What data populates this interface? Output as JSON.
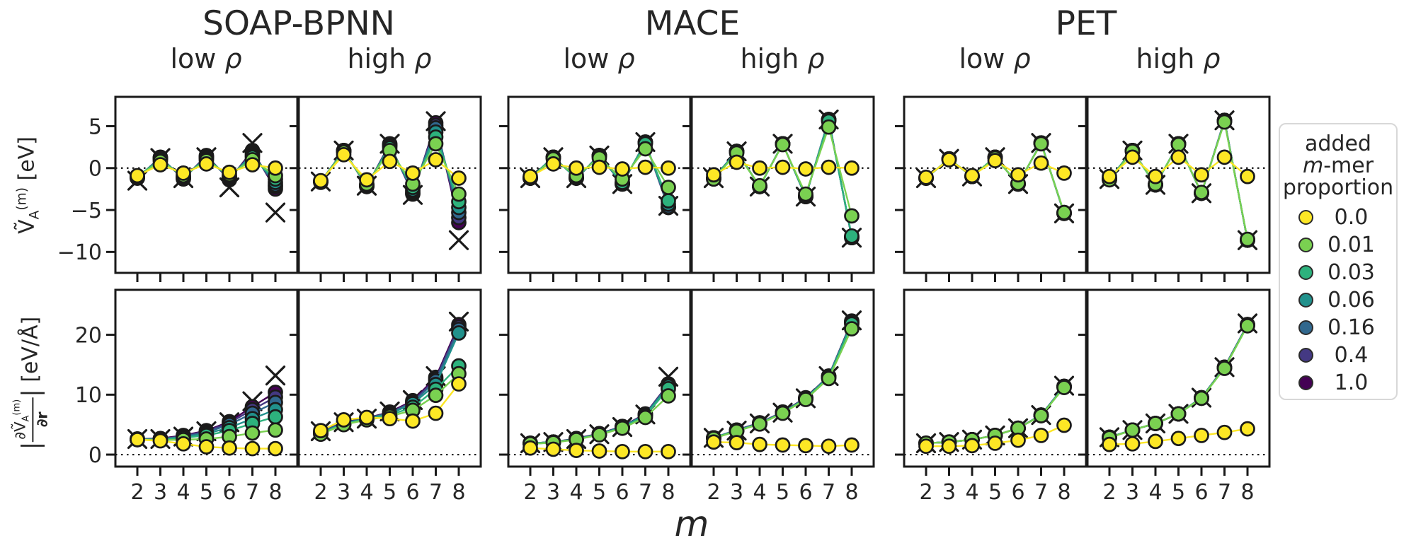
{
  "figure": {
    "groups": [
      {
        "title": "SOAP-BPNN"
      },
      {
        "title": "MACE"
      },
      {
        "title": "PET"
      }
    ],
    "subtitles": [
      "low ρ",
      "high ρ",
      "low ρ",
      "high ρ",
      "low ρ",
      "high ρ"
    ],
    "xlabel": "m"
  },
  "axes": {
    "top": {
      "label": {
        "sym": "Ṽ",
        "sub": "A",
        "sup": "(m)",
        "unit": " [eV]"
      }
    },
    "bottom": {
      "label": {
        "bar": "|",
        "num": "∂Ṽ",
        "num_sub": "A",
        "num_sup": "(m)",
        "den": "∂r",
        "unit": " [eV/Å]"
      }
    }
  },
  "legend": {
    "title_lines": [
      {
        "text": "added"
      },
      {
        "italic": "m",
        "text": "-mer"
      },
      {
        "text": "proportion"
      }
    ],
    "entries": [
      {
        "label": "0.0",
        "color": "#fde725"
      },
      {
        "label": "0.01",
        "color": "#7ad151"
      },
      {
        "label": "0.03",
        "color": "#2db27d"
      },
      {
        "label": "0.06",
        "color": "#21918c"
      },
      {
        "label": "0.16",
        "color": "#31688e"
      },
      {
        "label": "0.4",
        "color": "#443983"
      },
      {
        "label": "1.0",
        "color": "#440154"
      }
    ]
  },
  "chart_data": {
    "type": "line",
    "x": [
      2,
      3,
      4,
      5,
      6,
      7,
      8
    ],
    "xlabel": "m",
    "proportions": [
      0.0,
      0.01,
      0.03,
      0.06,
      0.16,
      0.4,
      1.0
    ],
    "colors": [
      "#fde725",
      "#7ad151",
      "#2db27d",
      "#21918c",
      "#31688e",
      "#443983",
      "#440154"
    ],
    "target_marker": "x",
    "rows": [
      {
        "quantity": "energy",
        "ylabel": "V~_A^(m) [eV]",
        "ylim": [
          -12.5,
          8.5
        ],
        "yticks": [
          5,
          0,
          -5,
          -10
        ],
        "zero_line": true
      },
      {
        "quantity": "force",
        "ylabel": "|dV~_A^(m)/dr| [eV/A]",
        "ylim": [
          -2,
          27.5
        ],
        "yticks": [
          20,
          10,
          0
        ],
        "zero_line": true
      }
    ],
    "panels": [
      {
        "model": "SOAP-BPNN",
        "density": "low ρ",
        "row": 0,
        "col": 0,
        "targets": [
          -1.5,
          1.2,
          -1.2,
          1.3,
          -2.3,
          3.0,
          -5.3
        ],
        "series": [
          [
            -0.9,
            0.4,
            -0.6,
            0.5,
            -0.5,
            0.4,
            0.0
          ],
          [
            -1.0,
            0.8,
            -0.9,
            0.9,
            -0.8,
            1.0,
            -0.9
          ],
          [
            -1.0,
            1.0,
            -1.0,
            1.1,
            -1.0,
            1.3,
            -1.3
          ],
          [
            -1.1,
            1.1,
            -1.1,
            1.2,
            -1.1,
            1.5,
            -1.7
          ],
          [
            -1.1,
            1.2,
            -1.2,
            1.3,
            -1.2,
            1.7,
            -2.0
          ],
          [
            -1.2,
            1.2,
            -1.2,
            1.4,
            -1.3,
            1.9,
            -2.2
          ],
          [
            -1.2,
            1.3,
            -1.3,
            1.5,
            -1.4,
            2.1,
            -2.5
          ]
        ]
      },
      {
        "model": "SOAP-BPNN",
        "density": "high ρ",
        "row": 0,
        "col": 1,
        "targets": [
          -1.6,
          2.1,
          -2.1,
          2.9,
          -3.2,
          5.6,
          -8.6
        ],
        "series": [
          [
            -1.5,
            1.6,
            -1.4,
            0.8,
            -0.6,
            1.0,
            -1.2
          ],
          [
            -1.6,
            1.9,
            -1.9,
            2.1,
            -1.9,
            2.9,
            -3.1
          ],
          [
            -1.6,
            2.0,
            -2.0,
            2.4,
            -2.3,
            3.7,
            -4.0
          ],
          [
            -1.6,
            2.0,
            -2.1,
            2.6,
            -2.6,
            4.3,
            -4.7
          ],
          [
            -1.6,
            2.1,
            -2.1,
            2.7,
            -2.8,
            4.8,
            -5.3
          ],
          [
            -1.6,
            2.1,
            -2.2,
            2.8,
            -3.0,
            5.1,
            -5.9
          ],
          [
            -1.7,
            2.1,
            -2.2,
            2.9,
            -3.1,
            5.4,
            -6.5
          ]
        ]
      },
      {
        "model": "MACE",
        "density": "low ρ",
        "row": 0,
        "col": 2,
        "targets": [
          -1.2,
          1.3,
          -1.2,
          1.5,
          -1.9,
          3.1,
          -4.5
        ],
        "series": [
          [
            -1.0,
            0.5,
            0.0,
            0.1,
            -0.1,
            0.1,
            0.0
          ],
          [
            -1.2,
            1.1,
            -0.9,
            1.2,
            -1.3,
            2.3,
            -2.3
          ],
          [
            -1.2,
            1.2,
            -1.1,
            1.4,
            -1.7,
            2.9,
            -3.9
          ],
          [
            -1.2,
            1.3,
            -1.2,
            1.5,
            -1.8,
            3.0,
            -4.3
          ],
          [
            -1.2,
            1.3,
            -1.2,
            1.5,
            -1.9,
            3.1,
            -4.6
          ],
          [
            -1.2,
            1.3,
            -1.2,
            1.5,
            -1.9,
            3.1,
            -4.7
          ],
          [
            -1.2,
            1.3,
            -1.2,
            1.5,
            -1.9,
            3.1,
            -4.7
          ]
        ]
      },
      {
        "model": "MACE",
        "density": "high ρ",
        "row": 0,
        "col": 3,
        "targets": [
          -1.2,
          2.0,
          -2.2,
          2.9,
          -3.4,
          5.8,
          -8.3
        ],
        "series": [
          [
            -0.8,
            0.7,
            0.0,
            0.1,
            -0.1,
            0.1,
            0.0
          ],
          [
            -1.3,
            1.8,
            -2.1,
            2.8,
            -3.1,
            4.9,
            -5.7
          ],
          [
            -1.3,
            1.9,
            -2.2,
            2.9,
            -3.3,
            5.6,
            -8.1
          ],
          [
            -1.2,
            2.0,
            -2.2,
            2.9,
            -3.4,
            5.7,
            -8.2
          ],
          [
            -1.2,
            2.0,
            -2.2,
            2.9,
            -3.4,
            5.8,
            -8.2
          ],
          [
            -1.2,
            2.0,
            -2.2,
            2.9,
            -3.4,
            5.8,
            -8.3
          ],
          [
            -1.2,
            2.0,
            -2.2,
            2.9,
            -3.4,
            5.8,
            -8.3
          ]
        ]
      },
      {
        "model": "PET",
        "density": "low ρ",
        "row": 0,
        "col": 4,
        "targets": [
          -1.2,
          1.1,
          -1.0,
          1.3,
          -1.9,
          3.0,
          -5.4
        ],
        "series": [
          [
            -1.1,
            1.0,
            -0.9,
            0.9,
            -0.8,
            0.6,
            -0.6
          ],
          [
            -1.2,
            1.1,
            -1.0,
            1.2,
            -1.8,
            2.9,
            -5.3
          ],
          [
            -1.2,
            1.1,
            -1.0,
            1.3,
            -1.9,
            3.0,
            -5.3
          ],
          [
            -1.2,
            1.1,
            -1.0,
            1.3,
            -1.9,
            3.0,
            -5.4
          ],
          [
            -1.2,
            1.1,
            -1.0,
            1.3,
            -1.9,
            3.0,
            -5.4
          ],
          [
            -1.2,
            1.1,
            -1.0,
            1.3,
            -1.9,
            3.0,
            -5.4
          ],
          [
            -1.2,
            1.1,
            -1.0,
            1.3,
            -1.9,
            3.0,
            -5.4
          ]
        ]
      },
      {
        "model": "PET",
        "density": "high ρ",
        "row": 0,
        "col": 5,
        "targets": [
          -1.3,
          2.1,
          -2.0,
          2.9,
          -3.0,
          5.7,
          -8.6
        ],
        "series": [
          [
            -1.0,
            1.3,
            -1.0,
            1.3,
            -0.8,
            1.3,
            -1.0
          ],
          [
            -1.4,
            2.0,
            -1.9,
            2.8,
            -2.9,
            5.5,
            -8.5
          ],
          [
            -1.3,
            2.0,
            -2.0,
            2.9,
            -3.0,
            5.6,
            -8.5
          ],
          [
            -1.3,
            2.1,
            -2.0,
            2.9,
            -3.0,
            5.6,
            -8.6
          ],
          [
            -1.3,
            2.1,
            -2.0,
            2.9,
            -3.0,
            5.7,
            -8.6
          ],
          [
            -1.3,
            2.1,
            -2.0,
            2.9,
            -3.0,
            5.7,
            -8.6
          ],
          [
            -1.3,
            2.1,
            -2.0,
            2.9,
            -3.0,
            5.7,
            -8.6
          ]
        ]
      },
      {
        "model": "SOAP-BPNN",
        "density": "low ρ",
        "row": 1,
        "col": 0,
        "targets": [
          2.6,
          2.6,
          3.0,
          3.9,
          5.4,
          8.9,
          13.2
        ],
        "series": [
          [
            2.5,
            2.3,
            1.8,
            1.3,
            1.1,
            1.0,
            1.0
          ],
          [
            2.5,
            2.4,
            2.5,
            2.6,
            3.0,
            3.6,
            4.1
          ],
          [
            2.5,
            2.5,
            2.8,
            3.2,
            4.0,
            5.2,
            6.3
          ],
          [
            2.5,
            2.5,
            2.9,
            3.5,
            4.5,
            6.0,
            7.5
          ],
          [
            2.6,
            2.6,
            3.0,
            3.7,
            5.0,
            6.9,
            8.7
          ],
          [
            2.6,
            2.6,
            3.1,
            3.9,
            5.3,
            7.5,
            9.6
          ],
          [
            2.6,
            2.7,
            3.2,
            4.0,
            5.5,
            8.0,
            10.4
          ]
        ]
      },
      {
        "model": "SOAP-BPNN",
        "density": "high ρ",
        "row": 1,
        "col": 1,
        "targets": [
          3.9,
          5.4,
          6.0,
          7.2,
          9.1,
          13.1,
          22.2
        ],
        "series": [
          [
            4.0,
            5.8,
            6.2,
            6.0,
            5.6,
            6.9,
            11.8
          ],
          [
            3.4,
            5.0,
            5.8,
            6.4,
            7.4,
            9.9,
            13.5
          ],
          [
            3.5,
            5.1,
            5.9,
            6.6,
            7.9,
            10.9,
            14.8
          ],
          [
            3.6,
            5.2,
            6.0,
            6.8,
            8.5,
            11.7,
            20.3
          ],
          [
            3.7,
            5.3,
            6.0,
            6.9,
            8.7,
            12.3,
            20.9
          ],
          [
            3.8,
            5.3,
            6.1,
            7.0,
            8.8,
            12.6,
            21.3
          ],
          [
            3.8,
            5.4,
            6.1,
            7.1,
            9.0,
            12.9,
            21.7
          ]
        ]
      },
      {
        "model": "MACE",
        "density": "low ρ",
        "row": 1,
        "col": 2,
        "targets": [
          1.9,
          2.1,
          2.6,
          3.4,
          4.6,
          6.7,
          13.0
        ],
        "series": [
          [
            1.1,
            0.9,
            0.7,
            0.6,
            0.5,
            0.5,
            0.5
          ],
          [
            1.8,
            2.0,
            2.5,
            3.3,
            4.4,
            6.2,
            9.8
          ],
          [
            1.8,
            2.0,
            2.6,
            3.4,
            4.5,
            6.5,
            11.0
          ],
          [
            1.9,
            2.1,
            2.6,
            3.4,
            4.6,
            6.6,
            11.4
          ],
          [
            1.9,
            2.1,
            2.6,
            3.4,
            4.6,
            6.7,
            11.6
          ],
          [
            1.9,
            2.1,
            2.6,
            3.5,
            4.7,
            6.7,
            11.7
          ],
          [
            1.9,
            2.1,
            2.7,
            3.5,
            4.7,
            6.8,
            11.8
          ]
        ]
      },
      {
        "model": "MACE",
        "density": "high ρ",
        "row": 1,
        "col": 3,
        "targets": [
          2.8,
          4.0,
          5.2,
          7.0,
          9.4,
          13.1,
          22.4
        ],
        "series": [
          [
            2.1,
            2.0,
            1.7,
            1.6,
            1.5,
            1.4,
            1.6
          ],
          [
            2.7,
            3.9,
            5.1,
            6.9,
            9.2,
            12.7,
            21.0
          ],
          [
            2.8,
            4.0,
            5.2,
            7.0,
            9.3,
            12.9,
            21.8
          ],
          [
            2.8,
            4.0,
            5.2,
            7.0,
            9.4,
            13.0,
            22.0
          ],
          [
            2.8,
            4.0,
            5.2,
            7.0,
            9.4,
            13.0,
            22.1
          ],
          [
            2.8,
            4.1,
            5.3,
            7.1,
            9.4,
            13.1,
            22.2
          ],
          [
            2.8,
            4.1,
            5.3,
            7.1,
            9.5,
            13.1,
            22.3
          ]
        ]
      },
      {
        "model": "PET",
        "density": "low ρ",
        "row": 1,
        "col": 4,
        "targets": [
          1.9,
          2.1,
          2.5,
          3.2,
          4.4,
          6.6,
          11.5
        ],
        "series": [
          [
            1.4,
            1.4,
            1.5,
            1.9,
            2.4,
            3.2,
            4.9
          ],
          [
            1.9,
            2.1,
            2.5,
            3.2,
            4.4,
            6.5,
            11.2
          ],
          [
            1.9,
            2.1,
            2.5,
            3.2,
            4.4,
            6.5,
            11.3
          ],
          [
            1.9,
            2.1,
            2.5,
            3.2,
            4.4,
            6.6,
            11.3
          ],
          [
            1.9,
            2.1,
            2.5,
            3.2,
            4.4,
            6.6,
            11.4
          ],
          [
            1.9,
            2.1,
            2.5,
            3.2,
            4.4,
            6.6,
            11.4
          ],
          [
            1.9,
            2.1,
            2.5,
            3.2,
            4.4,
            6.6,
            11.4
          ]
        ]
      },
      {
        "model": "PET",
        "density": "high ρ",
        "row": 1,
        "col": 5,
        "targets": [
          2.9,
          4.1,
          5.2,
          6.8,
          9.5,
          14.6,
          21.9
        ],
        "series": [
          [
            1.7,
            1.8,
            2.2,
            2.7,
            3.2,
            3.7,
            4.3
          ],
          [
            2.8,
            4.1,
            5.2,
            6.8,
            9.4,
            14.4,
            21.5
          ],
          [
            2.9,
            4.1,
            5.2,
            6.8,
            9.4,
            14.5,
            21.6
          ],
          [
            2.9,
            4.1,
            5.2,
            6.8,
            9.5,
            14.5,
            21.6
          ],
          [
            2.9,
            4.1,
            5.2,
            6.8,
            9.5,
            14.5,
            21.7
          ],
          [
            2.9,
            4.1,
            5.2,
            6.8,
            9.5,
            14.6,
            21.7
          ],
          [
            2.9,
            4.1,
            5.2,
            6.8,
            9.5,
            14.6,
            21.7
          ]
        ]
      }
    ]
  }
}
